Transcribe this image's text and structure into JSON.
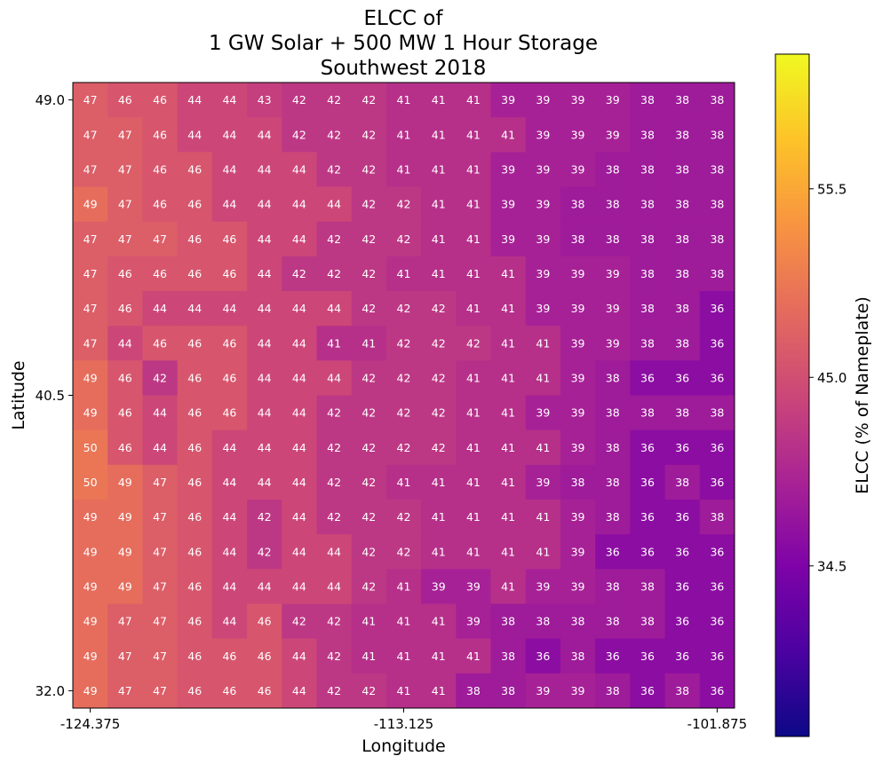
{
  "chart_data": {
    "type": "heatmap",
    "title": [
      "ELCC of",
      "1 GW Solar + 500 MW 1 Hour Storage",
      "Southwest 2018"
    ],
    "xlabel": "Longitude",
    "ylabel": "Latitude",
    "x_ticks": [
      "-124.375",
      "-113.125",
      "-101.875"
    ],
    "y_ticks": [
      "49.0",
      "40.5",
      "32.0"
    ],
    "colorbar": {
      "label": "ELCC (% of Nameplate)",
      "ticks": [
        "55.5",
        "45.0",
        "34.5"
      ],
      "colormap": "plasma",
      "vmin": 25,
      "vmax": 63
    },
    "rows": [
      [
        47,
        46,
        46,
        44,
        44,
        43,
        42,
        42,
        42,
        41,
        41,
        41,
        39,
        39,
        39,
        39,
        38,
        38,
        38
      ],
      [
        47,
        47,
        46,
        44,
        44,
        44,
        42,
        42,
        42,
        41,
        41,
        41,
        41,
        39,
        39,
        39,
        38,
        38,
        38
      ],
      [
        47,
        47,
        46,
        46,
        44,
        44,
        44,
        42,
        42,
        41,
        41,
        41,
        39,
        39,
        39,
        38,
        38,
        38,
        38
      ],
      [
        49,
        47,
        46,
        46,
        44,
        44,
        44,
        44,
        42,
        42,
        41,
        41,
        39,
        39,
        38,
        38,
        38,
        38,
        38
      ],
      [
        47,
        47,
        47,
        46,
        46,
        44,
        44,
        42,
        42,
        42,
        41,
        41,
        39,
        39,
        38,
        38,
        38,
        38,
        38
      ],
      [
        47,
        46,
        46,
        46,
        46,
        44,
        42,
        42,
        42,
        41,
        41,
        41,
        41,
        39,
        39,
        39,
        38,
        38,
        38
      ],
      [
        47,
        46,
        44,
        44,
        44,
        44,
        44,
        44,
        42,
        42,
        42,
        41,
        41,
        39,
        39,
        39,
        38,
        38,
        36
      ],
      [
        47,
        44,
        46,
        46,
        46,
        44,
        44,
        41,
        41,
        42,
        42,
        42,
        41,
        41,
        39,
        39,
        38,
        38,
        36
      ],
      [
        49,
        46,
        42,
        46,
        46,
        44,
        44,
        44,
        42,
        42,
        42,
        41,
        41,
        41,
        39,
        38,
        36,
        36,
        36
      ],
      [
        49,
        46,
        44,
        46,
        46,
        44,
        44,
        42,
        42,
        42,
        42,
        41,
        41,
        39,
        39,
        38,
        38,
        38,
        38
      ],
      [
        50,
        46,
        44,
        46,
        44,
        44,
        44,
        42,
        42,
        42,
        42,
        41,
        41,
        41,
        39,
        38,
        36,
        36,
        36
      ],
      [
        50,
        49,
        47,
        46,
        44,
        44,
        44,
        42,
        42,
        41,
        41,
        41,
        41,
        39,
        38,
        38,
        36,
        38,
        36
      ],
      [
        49,
        49,
        47,
        46,
        44,
        42,
        44,
        42,
        42,
        42,
        41,
        41,
        41,
        41,
        39,
        38,
        36,
        36,
        38
      ],
      [
        49,
        49,
        47,
        46,
        44,
        42,
        44,
        44,
        42,
        42,
        41,
        41,
        41,
        41,
        39,
        36,
        36,
        36,
        36
      ],
      [
        49,
        49,
        47,
        46,
        44,
        44,
        44,
        44,
        42,
        41,
        39,
        39,
        41,
        39,
        39,
        38,
        38,
        36,
        36
      ],
      [
        49,
        47,
        47,
        46,
        44,
        46,
        42,
        42,
        41,
        41,
        41,
        39,
        38,
        38,
        38,
        38,
        38,
        36,
        36
      ],
      [
        49,
        47,
        47,
        46,
        46,
        46,
        44,
        42,
        41,
        41,
        41,
        41,
        38,
        36,
        38,
        36,
        36,
        36,
        36
      ],
      [
        49,
        47,
        47,
        46,
        46,
        46,
        44,
        42,
        42,
        41,
        41,
        38,
        38,
        39,
        39,
        38,
        36,
        38,
        36
      ]
    ]
  }
}
